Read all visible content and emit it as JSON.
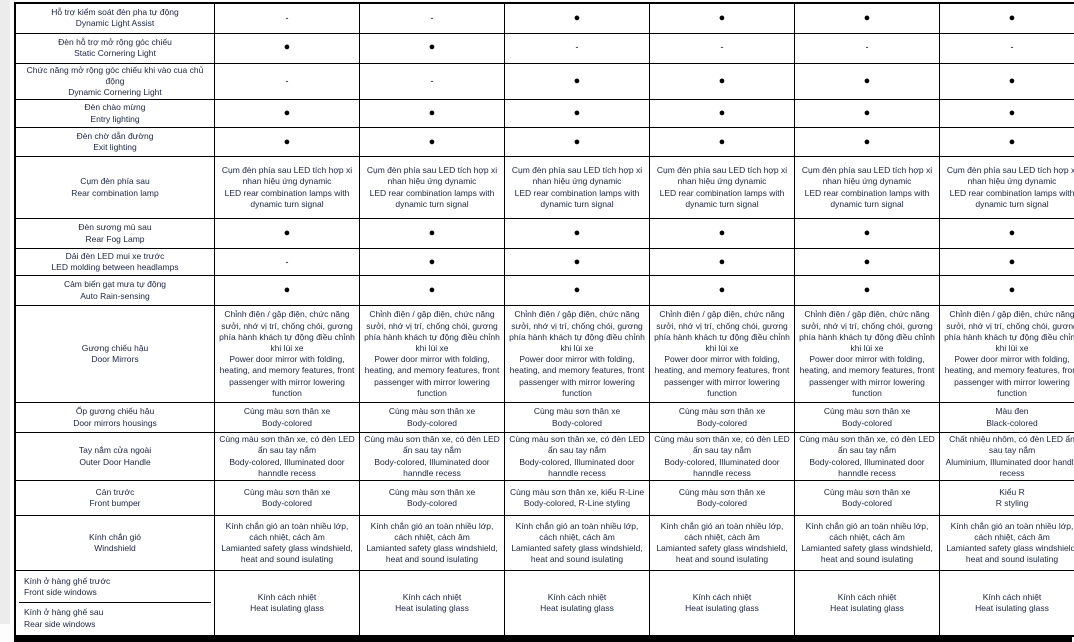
{
  "page": {
    "background": "#ffffff",
    "margin_strip_color": "#ececec",
    "border_color": "#000000",
    "text_color": "#1c2540",
    "bottom_bar_color": "#000000"
  },
  "symbols": {
    "present": "●",
    "absent": "-"
  },
  "table": {
    "column_count": 6,
    "rows": [
      {
        "label_vi": "Hỗ trợ kiểm soát đèn pha tự động",
        "label_en": "Dynamic Light Assist",
        "cells": [
          "-",
          "-",
          "●",
          "●",
          "●",
          "●"
        ]
      },
      {
        "label_vi": "Đèn hỗ trợ mở rộng góc chiếu",
        "label_en": "Static Cornering Light",
        "cells": [
          "●",
          "●",
          "-",
          "-",
          "-",
          "-"
        ]
      },
      {
        "label_vi": "Chức năng mở rộng góc chiếu khi vào cua chủ động",
        "label_en": "Dynamic Cornering Light",
        "cells": [
          "-",
          "-",
          "●",
          "●",
          "●",
          "●"
        ]
      },
      {
        "label_vi": "Đèn chào mừng",
        "label_en": "Entry lighting",
        "cells": [
          "●",
          "●",
          "●",
          "●",
          "●",
          "●"
        ]
      },
      {
        "label_vi": "Đèn chờ dẫn đường",
        "label_en": "Exit lighting",
        "cells": [
          "●",
          "●",
          "●",
          "●",
          "●",
          "●"
        ]
      },
      {
        "label_vi": "Cụm đèn phía sau",
        "label_en": "Rear combination lamp",
        "cells": [
          {
            "vi": "Cụm đèn phía sau LED tích hợp xi nhan hiệu ứng dynamic",
            "en": "LED rear combination lamps with dynamic turn signal"
          },
          {
            "vi": "Cụm đèn phía sau LED tích hợp xi nhan hiệu ứng dynamic",
            "en": "LED rear combination lamps with dynamic turn signal"
          },
          {
            "vi": "Cụm đèn phía sau LED tích hợp xi nhan hiệu ứng dynamic",
            "en": "LED rear combination lamps with dynamic turn signal"
          },
          {
            "vi": "Cụm đèn phía sau LED tích hợp xi nhan hiệu ứng dynamic",
            "en": "LED rear combination lamps with dynamic turn signal"
          },
          {
            "vi": "Cụm đèn phía sau LED tích hợp xi nhan hiệu ứng dynamic",
            "en": "LED rear combination lamps with dynamic turn signal"
          },
          {
            "vi": "Cụm đèn phía sau LED tích hợp xi nhan hiệu ứng dynamic",
            "en": "LED rear combination lamps with dynamic turn signal"
          }
        ]
      },
      {
        "label_vi": "Đèn sương mù sau",
        "label_en": "Rear Fog Lamp",
        "cells": [
          "●",
          "●",
          "●",
          "●",
          "●",
          "●"
        ]
      },
      {
        "label_vi": "Dải đèn LED mui xe trước",
        "label_en": "LED molding between headlamps",
        "cells": [
          "-",
          "●",
          "●",
          "●",
          "●",
          "●"
        ]
      },
      {
        "label_vi": "Cảm biến gạt mưa tự động",
        "label_en": "Auto Rain-sensing",
        "cells": [
          "●",
          "●",
          "●",
          "●",
          "●",
          "●"
        ]
      },
      {
        "label_vi": "Gương chiếu hậu",
        "label_en": "Door Mirrors",
        "cells": [
          {
            "vi": "Chỉnh điện / gập điện, chức năng sưởi, nhớ vị trí, chống chói, gương phía hành khách tự động điều chỉnh khi lùi xe",
            "en": "Power door mirror with folding, heating, and memory features, front passenger with mirror lowering function"
          },
          {
            "vi": "Chỉnh điện / gập điện, chức năng sưởi, nhớ vị trí, chống chói, gương phía hành khách tự động điều chỉnh khi lùi xe",
            "en": "Power door mirror with folding, heating, and memory features, front passenger with mirror lowering function"
          },
          {
            "vi": "Chỉnh điện / gập điện, chức năng sưởi, nhớ vị trí, chống chói, gương phía hành khách tự động điều chỉnh khi lùi xe",
            "en": "Power door mirror with folding, heating, and memory features, front passenger with mirror lowering function"
          },
          {
            "vi": "Chỉnh điện / gập điện, chức năng sưởi, nhớ vị trí, chống chói, gương phía hành khách tự động điều chỉnh khi lùi xe",
            "en": "Power door mirror with folding, heating, and memory features, front passenger with mirror lowering function"
          },
          {
            "vi": "Chỉnh điện / gập điện, chức năng sưởi, nhớ vị trí, chống chói, gương phía hành khách tự động điều chỉnh khi lùi xe",
            "en": "Power door mirror with folding, heating, and memory features, front passenger with mirror lowering function"
          },
          {
            "vi": "Chỉnh điện / gập điện, chức năng sưởi, nhớ vị trí, chống chói, gương phía hành khách tự động điều chỉnh khi lùi xe",
            "en": "Power door mirror with folding, heating, and memory features, front passenger with mirror lowering function"
          }
        ]
      },
      {
        "label_vi": "Ốp gương chiếu hậu",
        "label_en": "Door mirrors housings",
        "cells": [
          {
            "vi": "Cùng màu sơn thân xe",
            "en": "Body-colored"
          },
          {
            "vi": "Cùng màu sơn thân xe",
            "en": "Body-colored"
          },
          {
            "vi": "Cùng màu sơn thân xe",
            "en": "Body-colored"
          },
          {
            "vi": "Cùng màu sơn thân xe",
            "en": "Body-colored"
          },
          {
            "vi": "Cùng màu sơn thân xe",
            "en": "Body-colored"
          },
          {
            "vi": "Màu đen",
            "en": "Black-colored"
          }
        ]
      },
      {
        "label_vi": "Tay nắm cửa ngoài",
        "label_en": "Outer Door Handle",
        "cells": [
          {
            "vi": "Cùng màu sơn thân xe, có đèn LED ẩn sau tay nắm",
            "en": "Body-colored, Illuminated door hanndle recess"
          },
          {
            "vi": "Cùng màu sơn thân xe, có đèn LED ẩn sau tay nắm",
            "en": "Body-colored, Illuminated door hanndle recess"
          },
          {
            "vi": "Cùng màu sơn thân xe, có đèn LED ẩn sau tay nắm",
            "en": "Body-colored, Illuminated door hanndle recess"
          },
          {
            "vi": "Cùng màu sơn thân xe, có đèn LED ẩn sau tay nắm",
            "en": "Body-colored, Illuminated door hanndle recess"
          },
          {
            "vi": "Cùng màu sơn thân xe, có đèn LED ẩn sau tay nắm",
            "en": "Body-colored, Illuminated door hanndle recess"
          },
          {
            "vi": "Chất nhiệu nhôm, có đèn LED ẩn sau tay nắm",
            "en": "Aluminium, Illuminated door handle recess"
          }
        ]
      },
      {
        "label_vi": "Cản trước",
        "label_en": "Front bumper",
        "cells": [
          {
            "vi": "Cùng màu sơn thân xe",
            "en": "Body-colored"
          },
          {
            "vi": "Cùng màu sơn thân xe",
            "en": "Body-colored"
          },
          {
            "vi": "Cùng màu sơn thân xe, kiểu R-Line",
            "en": "Body-colored, R-Line styling"
          },
          {
            "vi": "Cùng màu sơn thân xe",
            "en": "Body-colored"
          },
          {
            "vi": "Cùng màu sơn thân xe",
            "en": "Body-colored"
          },
          {
            "vi": "Kiểu R",
            "en": "R styling"
          }
        ]
      },
      {
        "label_vi": "Kính chắn gió",
        "label_en": "Windshield",
        "cells": [
          {
            "vi": "Kính chắn gió an toàn nhiều lớp, cách nhiệt, cách âm",
            "en": "Lamianted safety glass windshield, heat and sound isulating"
          },
          {
            "vi": "Kính chắn gió an toàn nhiều lớp, cách nhiệt, cách âm",
            "en": "Lamianted safety glass windshield, heat and sound isulating"
          },
          {
            "vi": "Kính chắn gió an toàn nhiều lớp, cách nhiệt, cách âm",
            "en": "Lamianted safety glass windshield, heat and sound isulating"
          },
          {
            "vi": "Kính chắn gió an toàn nhiều lớp, cách nhiệt, cách âm",
            "en": "Lamianted safety glass windshield, heat and sound isulating"
          },
          {
            "vi": "Kính chắn gió an toàn nhiều lớp, cách nhiệt, cách âm",
            "en": "Lamianted safety glass windshield, heat and sound isulating"
          },
          {
            "vi": "Kính chắn gió an toàn nhiều lớp, cách nhiệt, cách âm",
            "en": "Lamianted safety glass windshield, heat and sound isulating"
          }
        ]
      },
      {
        "label_vi": "Kính ở hàng ghế trước",
        "label_en": "Front side windows",
        "label2_vi": "Kính ở hàng ghế sau",
        "label2_en": "Rear side windows",
        "cells": [
          {
            "vi": "Kính cách nhiệt",
            "en": "Heat isulating glass"
          },
          {
            "vi": "Kính cách nhiệt",
            "en": "Heat isulating glass"
          },
          {
            "vi": "Kính cách nhiệt",
            "en": "Heat isulating glass"
          },
          {
            "vi": "Kính cách nhiệt",
            "en": "Heat isulating glass"
          },
          {
            "vi": "Kính cách nhiệt",
            "en": "Heat isulating glass"
          },
          {
            "vi": "Kính cách nhiệt",
            "en": "Heat isulating glass"
          }
        ]
      }
    ]
  }
}
